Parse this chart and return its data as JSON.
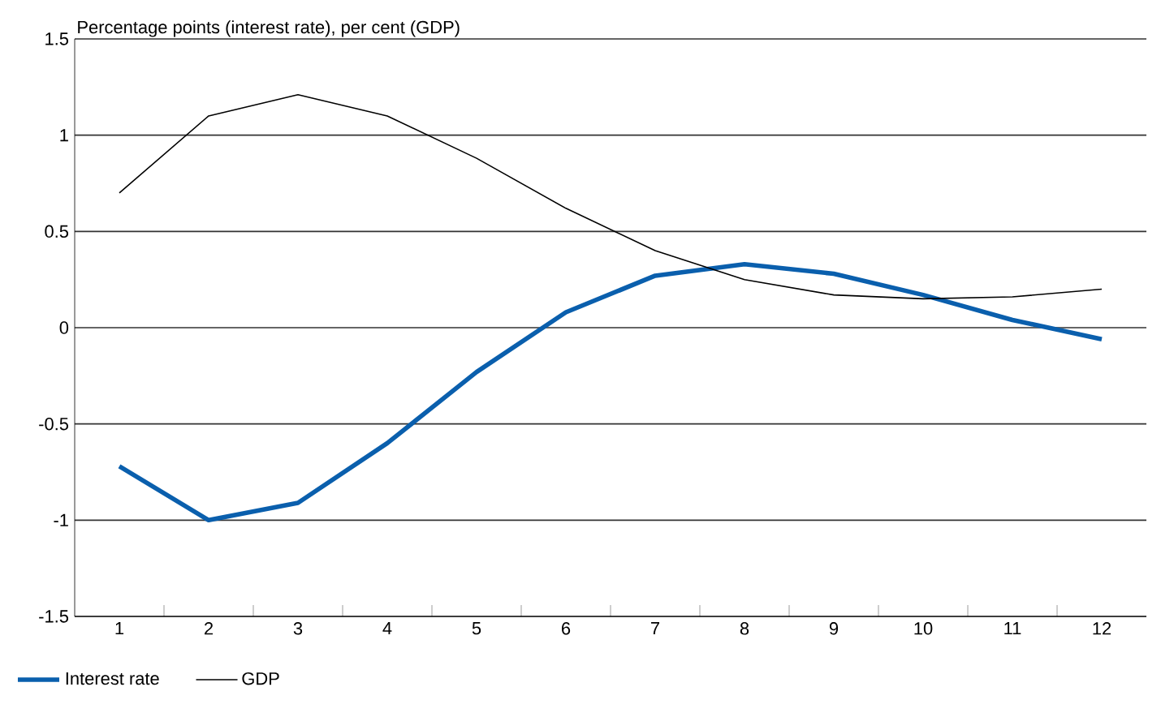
{
  "chart_data": {
    "type": "line",
    "ylabel": "Percentage points (interest rate), per cent (GDP)",
    "categories": [
      "1",
      "2",
      "3",
      "4",
      "5",
      "6",
      "7",
      "8",
      "9",
      "10",
      "11",
      "12"
    ],
    "series": [
      {
        "name": "Interest rate",
        "color": "#0a5fad",
        "values": [
          -0.72,
          -1.0,
          -0.91,
          -0.6,
          -0.23,
          0.08,
          0.27,
          0.33,
          0.28,
          0.17,
          0.04,
          -0.06
        ]
      },
      {
        "name": "GDP",
        "color": "#000000",
        "values": [
          0.7,
          1.1,
          1.21,
          1.1,
          0.88,
          0.62,
          0.4,
          0.25,
          0.17,
          0.15,
          0.16,
          0.2
        ]
      }
    ],
    "ylim": [
      -1.5,
      1.5
    ],
    "yticks": [
      -1.5,
      -1,
      -0.5,
      0,
      0.5,
      1,
      1.5
    ],
    "grid": "y",
    "legend": "bottom left",
    "marker": "none",
    "line_style": "solid"
  }
}
